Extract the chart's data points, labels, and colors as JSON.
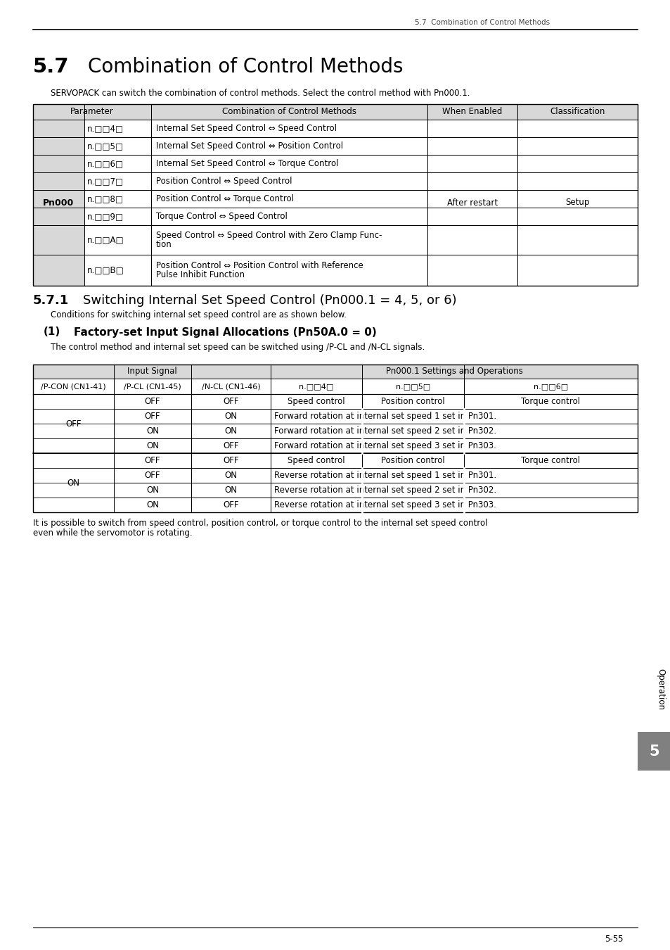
{
  "page_header": "5.7  Combination of Control Methods",
  "section_num": "5.7",
  "section_title": "Combination of Control Methods",
  "intro_text": "SERVOPACK can switch the combination of control methods. Select the control method with Pn000.1.",
  "table1_rows": [
    [
      "n.□□4□",
      "Internal Set Speed Control ⇔ Speed Control"
    ],
    [
      "n.□□5□",
      "Internal Set Speed Control ⇔ Position Control"
    ],
    [
      "n.□□6□",
      "Internal Set Speed Control ⇔ Torque Control"
    ],
    [
      "n.□□7□",
      "Position Control ⇔ Speed Control"
    ],
    [
      "n.□□8□",
      "Position Control ⇔ Torque Control"
    ],
    [
      "n.□□9□",
      "Torque Control ⇔ Speed Control"
    ],
    [
      "n.□□A□",
      "Speed Control ⇔ Speed Control with Zero Clamp Func-\ntion"
    ],
    [
      "n.□□B□",
      "Position Control ⇔ Position Control with Reference\nPulse Inhibit Function"
    ]
  ],
  "table1_right_col1": "After restart",
  "table1_right_col2": "Setup",
  "table1_left_label": "Pn000",
  "subsection_num": "5.7.1",
  "subsection_title": "Switching Internal Set Speed Control (Pn000.1 = 4, 5, or 6)",
  "subsection_body": "Conditions for switching internal set speed control are as shown below.",
  "subsection2_num": "(1)",
  "subsection2_title": "Factory-set Input Signal Allocations (Pn50A.0 = 0)",
  "subsection2_body": "The control method and internal set speed can be switched using /P-CL and /N-CL signals.",
  "table2_rows": [
    [
      "OFF",
      "OFF",
      "OFF",
      "Speed control",
      "Position control",
      "Torque control"
    ],
    [
      "OFF",
      "OFF",
      "ON",
      "Forward rotation at internal set speed 1 set in Pn301.",
      "",
      ""
    ],
    [
      "OFF",
      "ON",
      "ON",
      "Forward rotation at internal set speed 2 set in Pn302.",
      "",
      ""
    ],
    [
      "OFF",
      "ON",
      "OFF",
      "Forward rotation at internal set speed 3 set in Pn303.",
      "",
      ""
    ],
    [
      "ON",
      "OFF",
      "OFF",
      "Speed control",
      "Position control",
      "Torque control"
    ],
    [
      "ON",
      "OFF",
      "ON",
      "Reverse rotation at internal set speed 1 set in Pn301.",
      "",
      ""
    ],
    [
      "ON",
      "ON",
      "ON",
      "Reverse rotation at internal set speed 2 set in Pn302.",
      "",
      ""
    ],
    [
      "ON",
      "ON",
      "OFF",
      "Reverse rotation at internal set speed 3 set in Pn303.",
      "",
      ""
    ]
  ],
  "footnote_line1": "It is possible to switch from speed control, position control, or torque control to the internal set speed control",
  "footnote_line2": "even while the servomotor is rotating.",
  "page_footer_num": "5-55",
  "chapter_num": "5",
  "bg_color": "#ffffff",
  "light_gray": "#d8d8d8",
  "tab_gray": "#808080",
  "text_color": "#000000"
}
